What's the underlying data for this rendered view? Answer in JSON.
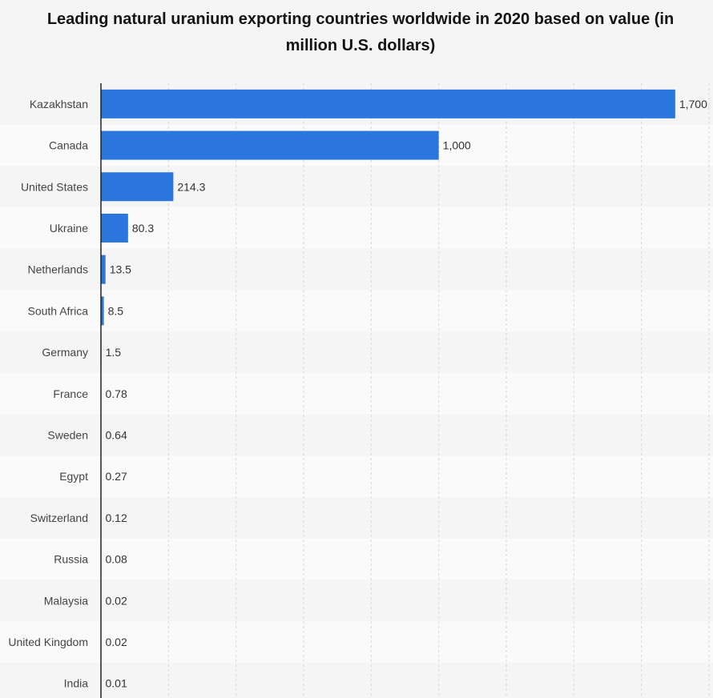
{
  "chart_data": {
    "type": "bar",
    "orientation": "horizontal",
    "title": "Leading natural uranium exporting countries worldwide in 2020 based on value (in million U.S. dollars)",
    "categories": [
      "Kazakhstan",
      "Canada",
      "United States",
      "Ukraine",
      "Netherlands",
      "South Africa",
      "Germany",
      "France",
      "Sweden",
      "Egypt",
      "Switzerland",
      "Russia",
      "Malaysia",
      "United Kingdom",
      "India"
    ],
    "values": [
      1700,
      1000,
      214.3,
      80.3,
      13.5,
      8.5,
      1.5,
      0.78,
      0.64,
      0.27,
      0.12,
      0.08,
      0.02,
      0.02,
      0.01
    ],
    "value_labels": [
      "1,700",
      "1,000",
      "214.3",
      "80.3",
      "13.5",
      "8.5",
      "1.5",
      "0.78",
      "0.64",
      "0.27",
      "0.12",
      "0.08",
      "0.02",
      "0.02",
      "0.01"
    ],
    "xlim": [
      0,
      1800
    ],
    "grid": true,
    "bar_color": "#2a76dd"
  }
}
